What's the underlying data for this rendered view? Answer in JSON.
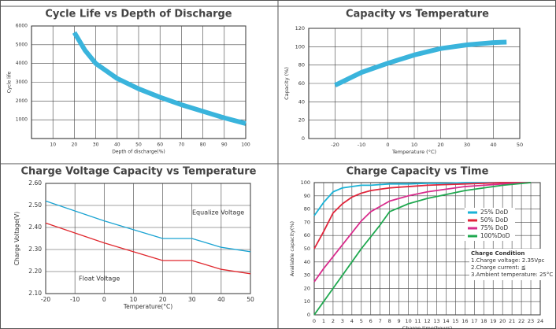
{
  "chart_data": [
    {
      "type": "line",
      "title": "Cycle Life vs Depth of Discharge",
      "xlabel": "Depth of discharge(%)",
      "ylabel": "Cycle life",
      "x": [
        20,
        25,
        30,
        40,
        50,
        60,
        70,
        80,
        90,
        100
      ],
      "series": [
        {
          "color": "#3ab4dc",
          "values": [
            5650,
            4700,
            4000,
            3200,
            2650,
            2200,
            1800,
            1450,
            1100,
            800
          ]
        }
      ],
      "xlim": [
        0,
        100
      ],
      "ylim": [
        0,
        6000
      ],
      "xticks": [
        10,
        20,
        30,
        40,
        50,
        60,
        70,
        80,
        90,
        100
      ],
      "yticks": [
        1000,
        2000,
        3000,
        4000,
        5000,
        6000
      ],
      "grid": true
    },
    {
      "type": "line",
      "title": "Capacity vs Temperature",
      "xlabel": "Temperature (°C)",
      "ylabel": "Capacity (%)",
      "x": [
        -20,
        -10,
        0,
        10,
        20,
        30,
        40,
        45
      ],
      "series": [
        {
          "color": "#3ab4dc",
          "values": [
            58,
            72,
            82,
            91,
            98,
            102,
            104.5,
            105
          ]
        }
      ],
      "xlim": [
        -30,
        50
      ],
      "ylim": [
        0,
        120
      ],
      "xticks": [
        -20,
        -10,
        0,
        10,
        20,
        30,
        40,
        50
      ],
      "yticks": [
        0,
        20,
        40,
        60,
        80,
        100,
        120
      ],
      "grid": true
    },
    {
      "type": "line",
      "title": "Charge Voltage Capacity  vs Temperature",
      "xlabel": "Temperature(°C)",
      "ylabel": "Charge Voltage(V)",
      "x": [
        -20,
        0,
        20,
        30,
        40,
        50
      ],
      "series": [
        {
          "name": "Equalize Voltage",
          "color": "#1aa3d2",
          "values": [
            2.52,
            2.43,
            2.35,
            2.35,
            2.31,
            2.29
          ]
        },
        {
          "name": "Float Voltage",
          "color": "#e0282e",
          "values": [
            2.42,
            2.33,
            2.25,
            2.25,
            2.21,
            2.19
          ]
        }
      ],
      "xlim": [
        -20,
        50
      ],
      "ylim": [
        2.1,
        2.6
      ],
      "xticks": [
        -20,
        -10,
        0,
        10,
        20,
        30,
        40,
        50
      ],
      "yticks": [
        {
          "value": 2.1,
          "label": "2.10"
        },
        {
          "value": 2.2,
          "label": "2.20"
        },
        {
          "value": 2.3,
          "label": "2.30"
        },
        {
          "value": 2.4,
          "label": "2.40"
        },
        {
          "value": 2.5,
          "label": "2.50"
        },
        {
          "value": 2.6,
          "label": "2.60"
        }
      ],
      "grid": true
    },
    {
      "type": "line",
      "title": "Charge  Capacity  vs Time",
      "xlabel": "Charge time(hours)",
      "ylabel": "Available capacity(%)",
      "x": [
        0,
        1,
        2,
        3,
        4,
        5,
        6,
        7,
        8,
        10,
        12,
        14,
        16,
        18,
        20,
        23
      ],
      "series": [
        {
          "name": "25%  DoD",
          "color": "#1ab2d6",
          "values": [
            75,
            85,
            93,
            96,
            97,
            98,
            98,
            98.5,
            99,
            99,
            99.5,
            99.5,
            100,
            100,
            100,
            100
          ]
        },
        {
          "name": "50%  DoD",
          "color": "#e0243a",
          "values": [
            50,
            63,
            77,
            84,
            89,
            92,
            94,
            95,
            96,
            97,
            98,
            98.5,
            99,
            99.5,
            100,
            100
          ]
        },
        {
          "name": "75%  DoD",
          "color": "#d82c8c",
          "values": [
            25,
            35,
            44,
            53,
            62,
            71,
            78,
            82,
            86,
            90,
            93,
            95,
            97,
            98,
            99,
            100
          ]
        },
        {
          "name": "100%DoD",
          "color": "#1fa84f",
          "values": [
            0,
            10,
            20,
            30,
            40,
            50,
            59,
            68,
            78,
            84,
            88,
            91,
            94,
            96,
            98,
            100
          ]
        }
      ],
      "annotations": [
        "Charge Condition",
        "1.Charge voltage: 2.35Vpc",
        "2.Charge current: ≦",
        "3.Ambient temperature: 25°C"
      ],
      "xlim": [
        0,
        24
      ],
      "ylim": [
        0,
        100
      ],
      "xticks": [
        0,
        1,
        2,
        3,
        4,
        5,
        6,
        7,
        8,
        9,
        10,
        11,
        12,
        13,
        14,
        15,
        16,
        17,
        18,
        19,
        20,
        21,
        22,
        23,
        24
      ],
      "yticks": [
        0,
        10,
        20,
        30,
        40,
        50,
        60,
        70,
        80,
        90,
        100
      ],
      "grid": true,
      "legend": "right"
    }
  ]
}
